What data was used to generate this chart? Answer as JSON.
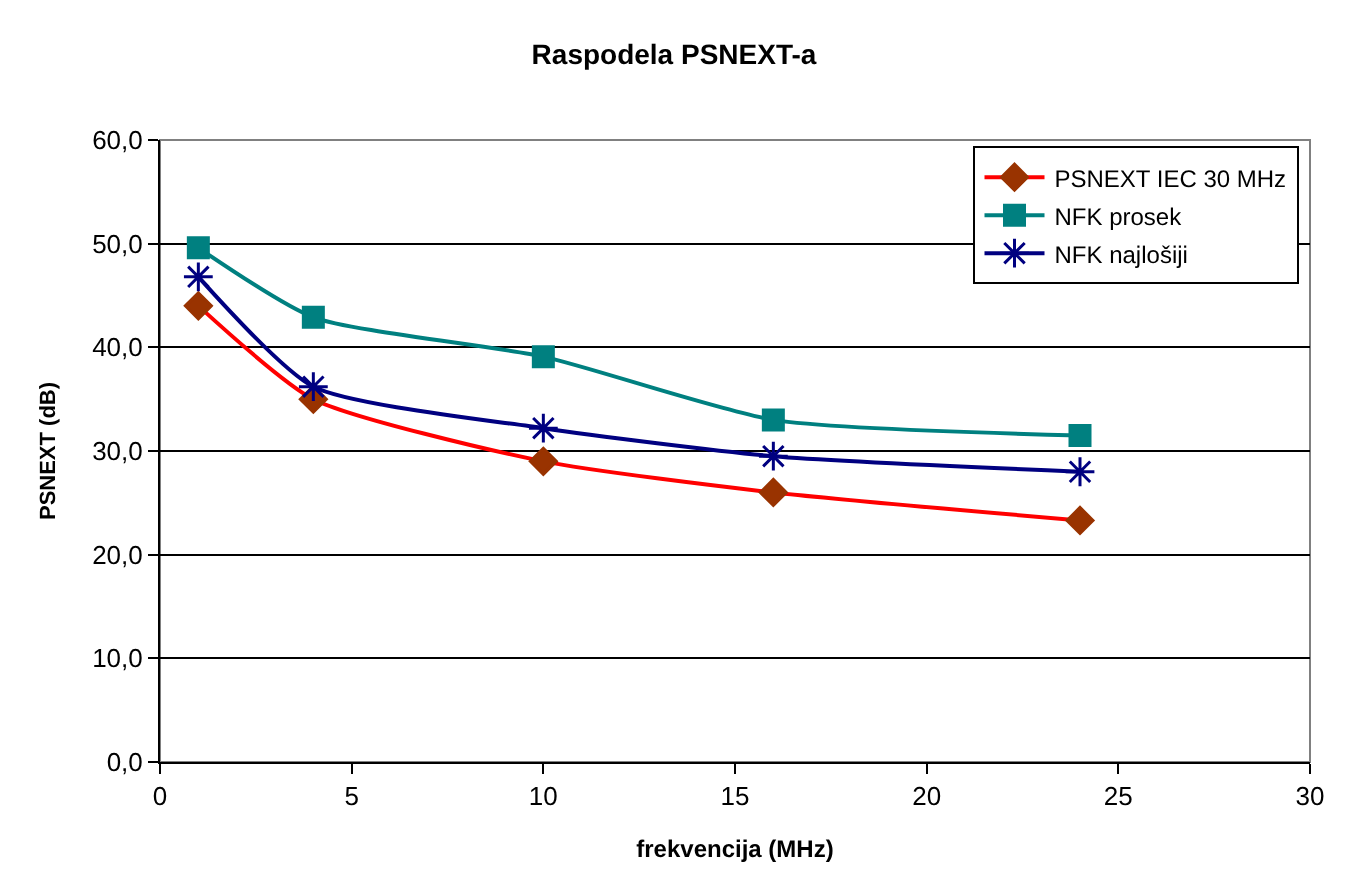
{
  "chart_data": {
    "type": "line",
    "title": "Raspodela PSNEXT-a",
    "xlabel": "frekvencija (MHz)",
    "ylabel": "PSNEXT (dB)",
    "x": [
      1,
      4,
      10,
      16,
      24
    ],
    "series": [
      {
        "name": "PSNEXT IEC 30 MHz",
        "color": "#ff0000",
        "colors": [
          "#993300",
          "#993300",
          "#993300",
          "#993300",
          "#993300"
        ],
        "marker": "diamond",
        "values": [
          44.0,
          35.0,
          29.0,
          26.0,
          23.3
        ]
      },
      {
        "name": "NFK prosek",
        "color": "#008080",
        "marker": "square",
        "values": [
          49.6,
          42.9,
          39.1,
          33.0,
          31.5
        ]
      },
      {
        "name": "NFK najlošiji",
        "color": "#000080",
        "marker": "cross",
        "values": [
          46.8,
          36.2,
          32.2,
          29.5,
          28.0
        ]
      }
    ],
    "xlim": [
      0,
      30
    ],
    "xticks": [
      0,
      5,
      10,
      15,
      20,
      25,
      30
    ],
    "ylim": [
      0,
      60
    ],
    "yticks": [
      {
        "value": 0,
        "label": "0,0"
      },
      {
        "value": 10,
        "label": "10,0"
      },
      {
        "value": 20,
        "label": "20,0"
      },
      {
        "value": 30,
        "label": "30,0"
      },
      {
        "value": 40,
        "label": "40,0"
      },
      {
        "value": 50,
        "label": "50,0"
      },
      {
        "value": 60,
        "label": "60,0"
      }
    ],
    "grid": "y",
    "legend": "top right",
    "line_style": "solid"
  }
}
